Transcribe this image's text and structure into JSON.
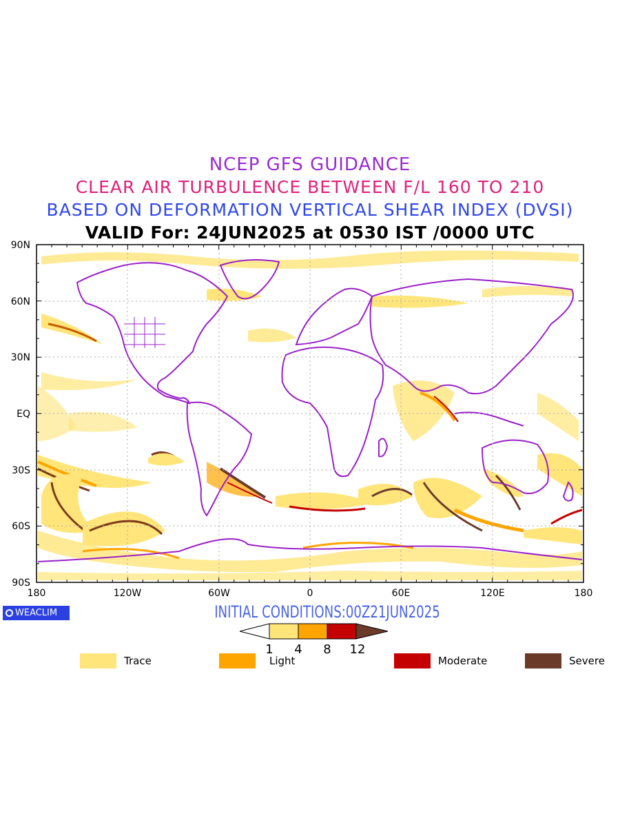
{
  "titles": {
    "line1": "NCEP GFS GUIDANCE",
    "line2": "CLEAR AIR TURBULENCE BETWEEN F/L 160 TO 210",
    "line3": "BASED ON DEFORMATION VERTICAL SHEAR INDEX (DVSI)",
    "line4": "VALID For: 24JUN2025 at 0530 IST /0000 UTC"
  },
  "axes": {
    "lat_labels": [
      "90N",
      "60N",
      "30N",
      "EQ",
      "30S",
      "60S",
      "90S"
    ],
    "lon_labels": [
      "180",
      "120W",
      "60W",
      "0",
      "60E",
      "120E",
      "180"
    ]
  },
  "brand": "WEACLIM",
  "initial_conditions": "INITIAL CONDITIONS:00Z21JUN2025",
  "colorbar": {
    "ticks": [
      "1",
      "4",
      "8",
      "12"
    ],
    "colors": [
      "#ffe57a",
      "#ffa500",
      "#c40000",
      "#6b3b2a"
    ]
  },
  "legend": [
    {
      "label": "Trace",
      "color": "#ffe57a"
    },
    {
      "label": "Light",
      "color": "#ffa500"
    },
    {
      "label": "Moderate",
      "color": "#c40000"
    },
    {
      "label": "Severe",
      "color": "#6b3b2a"
    }
  ],
  "colors": {
    "coastline": "#9a1fc8",
    "graticule": "#aaaaaa"
  }
}
